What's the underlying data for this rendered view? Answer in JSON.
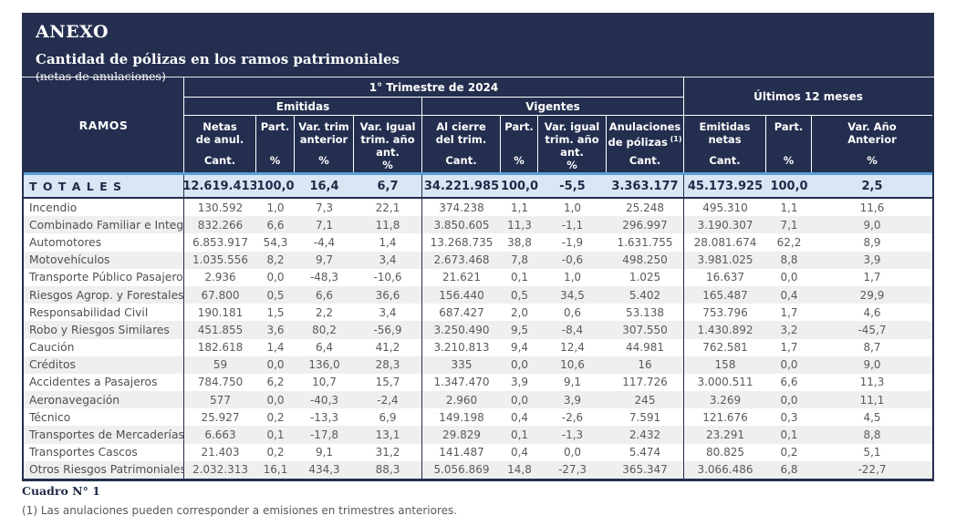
{
  "title_block": {
    "heading": "ANEXO",
    "title": "Cantidad de pólizas en los ramos patrimoniales",
    "subtitle": "(netas de anulaciones)"
  },
  "table": {
    "ramos_header": "RAMOS",
    "groups": {
      "trimestre": "1° Trimestre de 2024",
      "ultimos": "Últimos 12 meses",
      "emitidas": "Emitidas",
      "vigentes": "Vigentes"
    },
    "columns": [
      {
        "l1": "Netas",
        "l2": "de anul.",
        "unit": "Cant."
      },
      {
        "l1": "Part.",
        "l2": "",
        "unit": "%"
      },
      {
        "l1": "Var. trim",
        "l2": "anterior",
        "unit": "%"
      },
      {
        "l1": "Var. Igual",
        "l2": "trim. año ant.",
        "unit": "%"
      },
      {
        "l1": "Al cierre",
        "l2": "del trim.",
        "unit": "Cant."
      },
      {
        "l1": "Part.",
        "l2": "",
        "unit": "%"
      },
      {
        "l1": "Var. igual",
        "l2": "trim. año ant.",
        "unit": "%"
      },
      {
        "l1": "Anulaciones",
        "l2": "de pólizas",
        "sup": "(1)",
        "unit": "Cant."
      },
      {
        "l1": "Emitidas",
        "l2": "netas",
        "unit": "Cant."
      },
      {
        "l1": "Part.",
        "l2": "",
        "unit": "%"
      },
      {
        "l1": "Var. Año",
        "l2": "Anterior",
        "unit": "%"
      }
    ],
    "totales": {
      "label": "T O T A L E S",
      "cells": [
        "12.619.413",
        "100,0",
        "16,4",
        "6,7",
        "34.221.985",
        "100,0",
        "-5,5",
        "3.363.177",
        "45.173.925",
        "100,0",
        "2,5"
      ]
    },
    "rows": [
      {
        "label": "Incendio",
        "cells": [
          "130.592",
          "1,0",
          "7,3",
          "22,1",
          "374.238",
          "1,1",
          "1,0",
          "25.248",
          "495.310",
          "1,1",
          "11,6"
        ]
      },
      {
        "label": "Combinado Familiar e Integ.",
        "cells": [
          "832.266",
          "6,6",
          "7,1",
          "11,8",
          "3.850.605",
          "11,3",
          "-1,1",
          "296.997",
          "3.190.307",
          "7,1",
          "9,0"
        ]
      },
      {
        "label": "Automotores",
        "cells": [
          "6.853.917",
          "54,3",
          "-4,4",
          "1,4",
          "13.268.735",
          "38,8",
          "-1,9",
          "1.631.755",
          "28.081.674",
          "62,2",
          "8,9"
        ]
      },
      {
        "label": "Motovehículos",
        "cells": [
          "1.035.556",
          "8,2",
          "9,7",
          "3,4",
          "2.673.468",
          "7,8",
          "-0,6",
          "498.250",
          "3.981.025",
          "8,8",
          "3,9"
        ]
      },
      {
        "label": "Transporte Público Pasajeros",
        "cells": [
          "2.936",
          "0,0",
          "-48,3",
          "-10,6",
          "21.621",
          "0,1",
          "1,0",
          "1.025",
          "16.637",
          "0,0",
          "1,7"
        ]
      },
      {
        "label": "Riesgos Agrop. y Forestales",
        "cells": [
          "67.800",
          "0,5",
          "6,6",
          "36,6",
          "156.440",
          "0,5",
          "34,5",
          "5.402",
          "165.487",
          "0,4",
          "29,9"
        ]
      },
      {
        "label": "Responsabilidad Civil",
        "cells": [
          "190.181",
          "1,5",
          "2,2",
          "3,4",
          "687.427",
          "2,0",
          "0,6",
          "53.138",
          "753.796",
          "1,7",
          "4,6"
        ]
      },
      {
        "label": "Robo y Riesgos Similares",
        "cells": [
          "451.855",
          "3,6",
          "80,2",
          "-56,9",
          "3.250.490",
          "9,5",
          "-8,4",
          "307.550",
          "1.430.892",
          "3,2",
          "-45,7"
        ]
      },
      {
        "label": "Caución",
        "cells": [
          "182.618",
          "1,4",
          "6,4",
          "41,2",
          "3.210.813",
          "9,4",
          "12,4",
          "44.981",
          "762.581",
          "1,7",
          "8,7"
        ]
      },
      {
        "label": "Créditos",
        "cells": [
          "59",
          "0,0",
          "136,0",
          "28,3",
          "335",
          "0,0",
          "10,6",
          "16",
          "158",
          "0,0",
          "9,0"
        ]
      },
      {
        "label": "Accidentes a Pasajeros",
        "cells": [
          "784.750",
          "6,2",
          "10,7",
          "15,7",
          "1.347.470",
          "3,9",
          "9,1",
          "117.726",
          "3.000.511",
          "6,6",
          "11,3"
        ]
      },
      {
        "label": "Aeronavegación",
        "cells": [
          "577",
          "0,0",
          "-40,3",
          "-2,4",
          "2.960",
          "0,0",
          "3,9",
          "245",
          "3.269",
          "0,0",
          "11,1"
        ]
      },
      {
        "label": "Técnico",
        "cells": [
          "25.927",
          "0,2",
          "-13,3",
          "6,9",
          "149.198",
          "0,4",
          "-2,6",
          "7.591",
          "121.676",
          "0,3",
          "4,5"
        ]
      },
      {
        "label": "Transportes de Mercaderías",
        "cells": [
          "6.663",
          "0,1",
          "-17,8",
          "13,1",
          "29.829",
          "0,1",
          "-1,3",
          "2.432",
          "23.291",
          "0,1",
          "8,8"
        ]
      },
      {
        "label": "Transportes Cascos",
        "cells": [
          "21.403",
          "0,2",
          "9,1",
          "31,2",
          "141.487",
          "0,4",
          "0,0",
          "5.474",
          "80.825",
          "0,2",
          "5,1"
        ]
      },
      {
        "label": "Otros Riesgos Patrimoniales",
        "cells": [
          "2.032.313",
          "16,1",
          "434,3",
          "88,3",
          "5.056.869",
          "14,8",
          "-27,3",
          "365.347",
          "3.066.486",
          "6,8",
          "-22,7"
        ]
      }
    ]
  },
  "footer": {
    "caption": "Cuadro N° 1",
    "note": "(1) Las anulaciones pueden corresponder a emisiones en trimestres anteriores."
  },
  "colors": {
    "navy": "#242e4f",
    "totals_bg": "#d9e6f4",
    "header_rule_blue": "#5b9fd8",
    "stripe_gray": "#efefef",
    "body_text": "#5a5a5a"
  }
}
